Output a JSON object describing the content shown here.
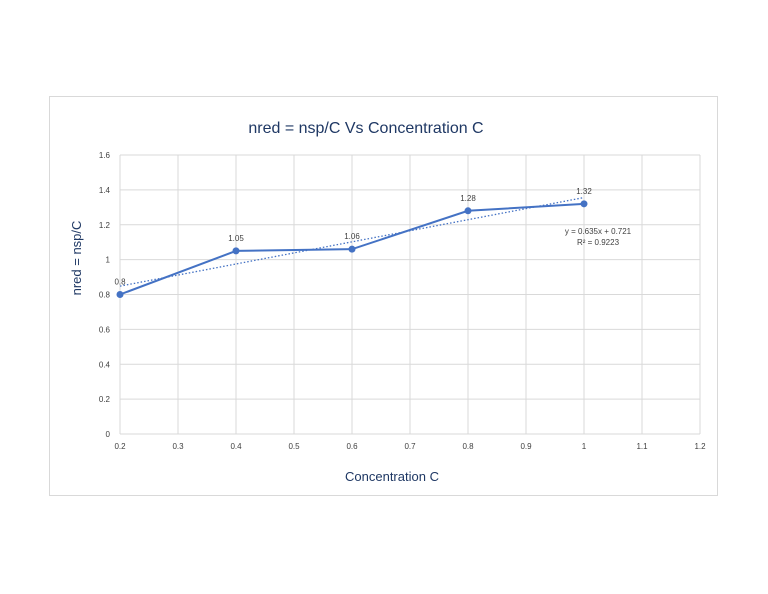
{
  "chart_data": {
    "type": "line",
    "title": "nred  =  nsp/C  Vs Concentration C",
    "xlabel": "Concentration C",
    "ylabel": "nred  =  nsp/C",
    "xlim": [
      0.2,
      1.2
    ],
    "ylim": [
      0,
      1.6
    ],
    "x_ticks": [
      0.2,
      0.3,
      0.4,
      0.5,
      0.6,
      0.7,
      0.8,
      0.9,
      1.0,
      1.1,
      1.2
    ],
    "x_tick_labels": [
      "0.2",
      "0.3",
      "0.4",
      "0.5",
      "0.6",
      "0.7",
      "0.8",
      "0.9",
      "1",
      "1.1",
      "1.2"
    ],
    "y_ticks": [
      0,
      0.2,
      0.4,
      0.6,
      0.8,
      1.0,
      1.2,
      1.4,
      1.6
    ],
    "y_tick_labels": [
      "0",
      "0.2",
      "0.4",
      "0.6",
      "0.8",
      "1",
      "1.2",
      "1.4",
      "1.6"
    ],
    "grid": true,
    "series": [
      {
        "x": [
          0.2,
          0.4,
          0.6,
          0.8,
          1.0
        ],
        "y": [
          0.8,
          1.05,
          1.06,
          1.28,
          1.32
        ],
        "data_labels": [
          "0.8",
          "1.05",
          "1.06",
          "1.28",
          "1.32"
        ],
        "color": "#4472c4"
      }
    ],
    "trendline": {
      "type": "linear",
      "slope": 0.635,
      "intercept": 0.721,
      "equation": "y = 0.635x + 0.721",
      "r_squared": "R² = 0.9223",
      "style": "dotted",
      "color": "#4472c4"
    }
  }
}
